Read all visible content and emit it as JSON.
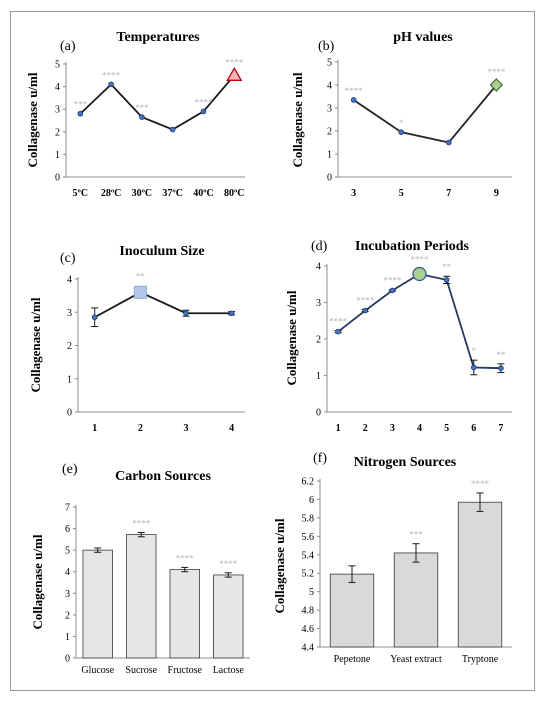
{
  "chart_data": [
    {
      "panel": "(a)",
      "type": "line",
      "title": "Temperatures",
      "ylabel": "Collagenase u/ml",
      "categories": [
        "5ºC",
        "28ºC",
        "30ºC",
        "37ºC",
        "40ºC",
        "80ºC"
      ],
      "values": [
        2.8,
        4.1,
        2.65,
        2.1,
        2.9,
        4.5
      ],
      "significance": [
        "***",
        "****",
        "***",
        "",
        "****",
        "****"
      ],
      "ylim": [
        0,
        5
      ],
      "yticks": [
        "0",
        "1",
        "2",
        "3",
        "4",
        "5"
      ],
      "highlight": {
        "index": 5,
        "shape": "triangle",
        "fill": "#f4b6b6",
        "stroke": "#c0000c"
      },
      "line_color": "#1a1a1a",
      "grid": false
    },
    {
      "panel": "(b)",
      "type": "line",
      "title": "pH values",
      "ylabel": "Collagenase u/ml",
      "categories": [
        "3",
        "5",
        "7",
        "9"
      ],
      "values": [
        3.35,
        1.95,
        1.5,
        4.0
      ],
      "significance": [
        "****",
        "*",
        "",
        "****"
      ],
      "ylim": [
        0,
        5
      ],
      "yticks": [
        "0",
        "1",
        "2",
        "3",
        "4",
        "5"
      ],
      "highlight": {
        "index": 3,
        "shape": "diamond",
        "fill": "#a9d18e",
        "stroke": "#385723"
      },
      "line_color": "#262626",
      "grid": false
    },
    {
      "panel": "(c)",
      "type": "line",
      "title": "Inoculum Size",
      "ylabel": "Collagenase u/ml",
      "categories": [
        "1",
        "2",
        "3",
        "4"
      ],
      "values": [
        2.85,
        3.6,
        2.97,
        2.97
      ],
      "errors": [
        0.28,
        0.08,
        0.09,
        0.05
      ],
      "significance": [
        "",
        "**",
        "",
        ""
      ],
      "ylim": [
        0,
        4
      ],
      "yticks": [
        "0",
        "1",
        "2",
        "3",
        "4"
      ],
      "highlight": {
        "index": 1,
        "shape": "square",
        "fill": "#b4c7e7",
        "stroke": "#8faadc"
      },
      "line_color": "#1a1a1a",
      "grid": false
    },
    {
      "panel": "(d)",
      "type": "line",
      "title": "Incubation Periods",
      "ylabel": "Collagenase u/ml",
      "categories": [
        "1",
        "2",
        "3",
        "4",
        "5",
        "6",
        "7"
      ],
      "values": [
        2.2,
        2.78,
        3.33,
        3.78,
        3.62,
        1.22,
        1.2
      ],
      "errors": [
        0.03,
        0.03,
        0.02,
        0.04,
        0.1,
        0.2,
        0.12
      ],
      "significance": [
        "****",
        "****",
        "****",
        "****",
        "**",
        "*",
        "**"
      ],
      "ylim": [
        0,
        4
      ],
      "yticks": [
        "0",
        "1",
        "2",
        "3",
        "4"
      ],
      "highlight": {
        "index": 3,
        "shape": "circle",
        "fill": "#a9d18e",
        "stroke": "#2f5597"
      },
      "line_color": "#203864",
      "grid": false
    },
    {
      "panel": "(e)",
      "type": "bar",
      "title": "Carbon Sources",
      "ylabel": "Collagenase u/ml",
      "categories": [
        "Glucose",
        "Sucrose",
        "Fructose",
        "Lactose"
      ],
      "values": [
        5.0,
        5.72,
        4.1,
        3.85
      ],
      "errors": [
        0.1,
        0.1,
        0.1,
        0.1
      ],
      "significance": [
        "",
        "****",
        "****",
        "****"
      ],
      "ylim": [
        0,
        7
      ],
      "yticks": [
        "0",
        "1",
        "2",
        "3",
        "4",
        "5",
        "6",
        "7"
      ],
      "bar_fill": "#e6e6e6",
      "grid": false
    },
    {
      "panel": "(f)",
      "type": "bar",
      "title": "Nitrogen Sources",
      "ylabel": "Collagenase u/ml",
      "categories": [
        "Pepetone",
        "Yeast extract",
        "Tryptone"
      ],
      "values": [
        5.19,
        5.42,
        5.97
      ],
      "errors": [
        0.09,
        0.1,
        0.1
      ],
      "significance": [
        "",
        "***",
        "****"
      ],
      "ylim": [
        4.4,
        6.2
      ],
      "yticks": [
        "4.4",
        "4.6",
        "4.8",
        "5",
        "5.2",
        "5.4",
        "5.6",
        "5.8",
        "6",
        "6.2"
      ],
      "bar_fill": "#d9d9d9",
      "grid": false
    }
  ]
}
